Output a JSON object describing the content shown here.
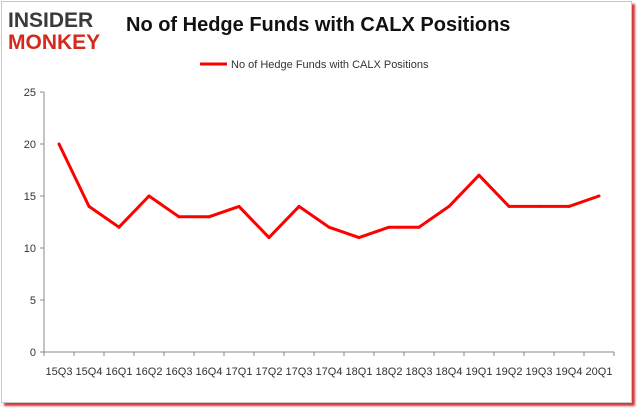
{
  "logo": {
    "line1": "INSIDER",
    "line2": "MONKEY",
    "colors": {
      "line1": "#3a3a3a",
      "line2": "#d42a1e"
    }
  },
  "chart_data": {
    "type": "line",
    "title": "No of Hedge Funds with CALX Positions",
    "xlabel": "",
    "ylabel": "",
    "categories": [
      "15Q3",
      "15Q4",
      "16Q1",
      "16Q2",
      "16Q3",
      "16Q4",
      "17Q1",
      "17Q2",
      "17Q3",
      "17Q4",
      "18Q1",
      "18Q2",
      "18Q3",
      "18Q4",
      "19Q1",
      "19Q2",
      "19Q3",
      "19Q4",
      "20Q1"
    ],
    "series": [
      {
        "name": "No of Hedge Funds with CALX Positions",
        "color": "#ff0000",
        "values": [
          20,
          14,
          12,
          15,
          13,
          13,
          14,
          11,
          14,
          12,
          11,
          12,
          12,
          14,
          17,
          14,
          14,
          14,
          15
        ]
      }
    ],
    "ylim": [
      0,
      25
    ],
    "yticks": [
      0,
      5,
      10,
      15,
      20,
      25
    ],
    "grid": false,
    "legend_position": "top-center"
  }
}
